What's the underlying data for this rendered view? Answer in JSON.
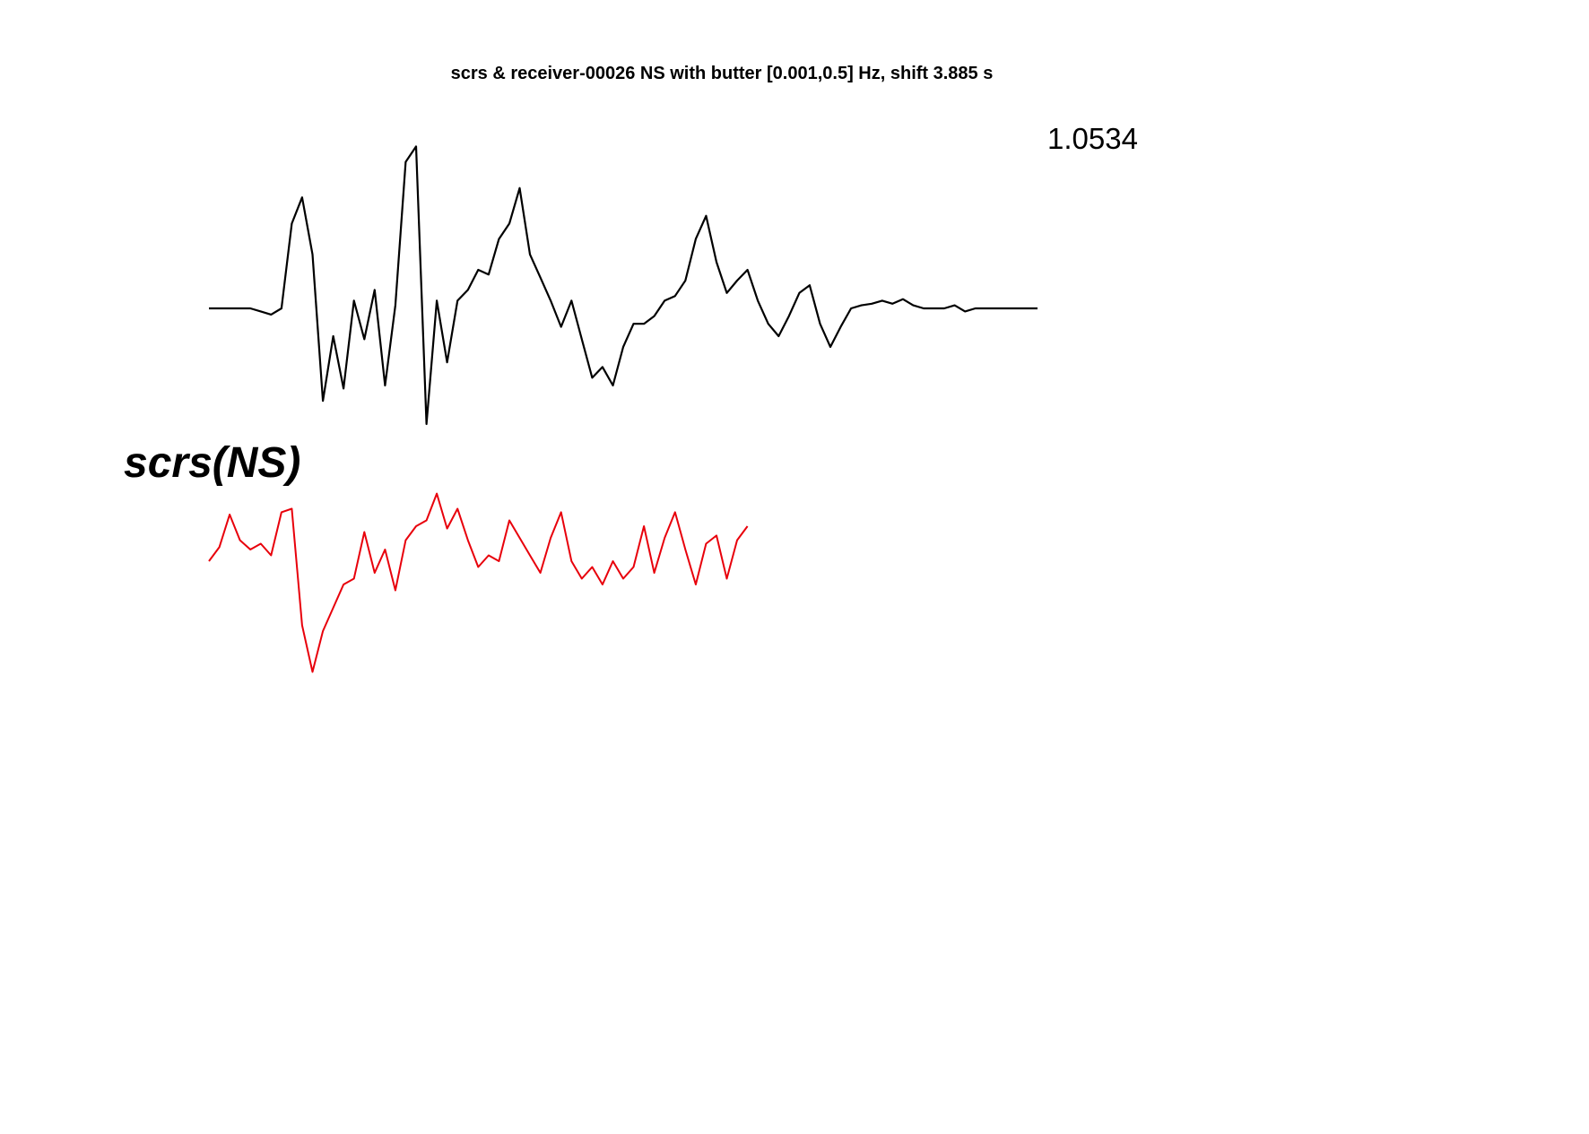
{
  "chart_data": {
    "type": "line",
    "title": "scrs & receiver-00026 NS with butter [0.001,0.5] Hz, shift 3.885 s",
    "annotation": "1.0534",
    "series_label": "scrs(NS)",
    "grid": false,
    "axes_visible": false,
    "y_scale_note": "normalized amplitude",
    "series": [
      {
        "color": "#000000",
        "x": [
          0,
          0.1,
          0.2,
          0.3,
          0.4,
          0.5,
          0.6,
          0.7,
          0.8,
          0.9,
          1,
          1.1,
          1.2,
          1.3,
          1.4,
          1.5,
          1.6,
          1.7,
          1.8,
          1.9,
          2,
          2.1,
          2.2,
          2.3,
          2.4,
          2.5,
          2.6,
          2.7,
          2.8,
          2.9,
          3,
          3.1,
          3.2,
          3.3,
          3.4,
          3.5,
          3.6,
          3.7,
          3.8,
          3.9,
          4,
          4.1,
          4.2,
          4.3,
          4.4,
          4.5,
          4.6,
          4.7,
          4.8,
          4.9,
          5,
          5.1,
          5.2,
          5.3,
          5.4,
          5.5,
          5.6,
          5.7,
          5.8,
          5.9,
          6,
          6.1,
          6.2,
          6.3,
          6.4,
          6.5,
          6.6,
          6.7,
          6.8,
          6.9,
          7,
          7.1,
          7.2,
          7.3,
          7.4,
          7.5,
          7.6,
          7.7,
          7.8,
          7.9,
          8
        ],
        "values": [
          0,
          0,
          0,
          0,
          0,
          -0.02,
          -0.04,
          0,
          0.55,
          0.72,
          0.35,
          -0.6,
          -0.18,
          -0.52,
          0.05,
          -0.2,
          0.12,
          -0.5,
          0.02,
          0.95,
          1.05,
          -0.75,
          0.05,
          -0.35,
          0.05,
          0.12,
          0.25,
          0.22,
          0.45,
          0.55,
          0.78,
          0.35,
          0.2,
          0.05,
          -0.12,
          0.05,
          -0.2,
          -0.45,
          -0.38,
          -0.5,
          -0.25,
          -0.1,
          -0.1,
          -0.05,
          0.05,
          0.08,
          0.18,
          0.45,
          0.6,
          0.3,
          0.1,
          0.18,
          0.25,
          0.05,
          -0.1,
          -0.18,
          -0.05,
          0.1,
          0.15,
          -0.1,
          -0.25,
          -0.12,
          0.0,
          0.02,
          0.03,
          0.05,
          0.03,
          0.06,
          0.02,
          0.0,
          0.0,
          0.0,
          0.02,
          -0.02,
          0.0,
          0.0,
          0.0,
          0.0,
          0.0,
          0.0,
          0.0
        ]
      },
      {
        "color": "#e8000b",
        "x": [
          0,
          0.1,
          0.2,
          0.3,
          0.4,
          0.5,
          0.6,
          0.7,
          0.8,
          0.9,
          1,
          1.1,
          1.2,
          1.3,
          1.4,
          1.5,
          1.6,
          1.7,
          1.8,
          1.9,
          2,
          2.1,
          2.2,
          2.3,
          2.4,
          2.5,
          2.6,
          2.7,
          2.8,
          2.9,
          3,
          3.1,
          3.2,
          3.3,
          3.4,
          3.5,
          3.6,
          3.7,
          3.8,
          3.9,
          4,
          4.1,
          4.2,
          4.3,
          4.4,
          4.5,
          4.6,
          4.7,
          4.8,
          4.9,
          5,
          5.1,
          5.2
        ],
        "values": [
          0,
          0.12,
          0.4,
          0.18,
          0.1,
          0.15,
          0.05,
          0.42,
          0.45,
          -0.55,
          -0.95,
          -0.6,
          -0.4,
          -0.2,
          -0.15,
          0.25,
          -0.1,
          0.1,
          -0.25,
          0.18,
          0.3,
          0.35,
          0.58,
          0.28,
          0.45,
          0.18,
          -0.05,
          0.05,
          0.0,
          0.35,
          0.2,
          0.05,
          -0.1,
          0.2,
          0.42,
          0.0,
          -0.15,
          -0.05,
          -0.2,
          0.0,
          -0.15,
          -0.05,
          0.3,
          -0.1,
          0.2,
          0.42,
          0.1,
          -0.2,
          0.15,
          0.22,
          -0.15,
          0.18,
          0.3
        ]
      }
    ]
  }
}
